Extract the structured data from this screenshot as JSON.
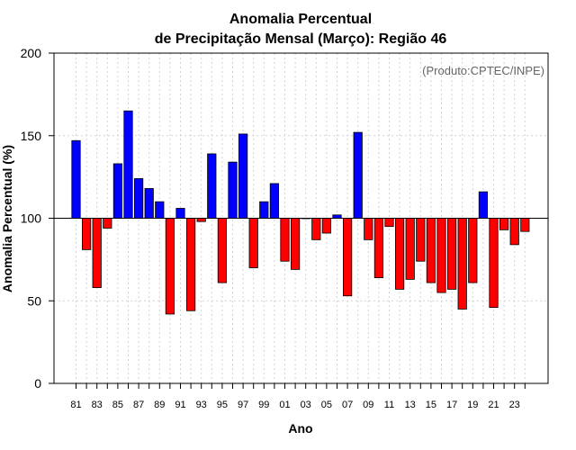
{
  "chart_data": {
    "type": "bar",
    "title_line1": "Anomalia Percentual",
    "title_line2": "de Precipitação Mensal (Março): Região 46",
    "xlabel": "Ano",
    "ylabel": "Anomalia Percentual (%)",
    "credit": "(Produto:CPTEC/INPE)",
    "baseline": 100,
    "ylim": [
      0,
      200
    ],
    "yticks": [
      0,
      50,
      100,
      150,
      200
    ],
    "ytick_labels": [
      "0",
      "50",
      "100",
      "150",
      "200"
    ],
    "xtick_labels": [
      "81",
      "83",
      "85",
      "87",
      "89",
      "91",
      "93",
      "95",
      "97",
      "99",
      "01",
      "03",
      "05",
      "07",
      "09",
      "11",
      "13",
      "15",
      "17",
      "19",
      "21",
      "23"
    ],
    "categories": [
      "1981",
      "1982",
      "1983",
      "1984",
      "1985",
      "1986",
      "1987",
      "1988",
      "1989",
      "1990",
      "1991",
      "1992",
      "1993",
      "1994",
      "1995",
      "1996",
      "1997",
      "1998",
      "1999",
      "2000",
      "2001",
      "2002",
      "2003",
      "2004",
      "2005",
      "2006",
      "2007",
      "2008",
      "2009",
      "2010",
      "2011",
      "2012",
      "2013",
      "2014",
      "2015",
      "2016",
      "2017",
      "2018",
      "2019",
      "2020",
      "2021",
      "2022",
      "2023",
      "2024"
    ],
    "values": [
      147,
      81,
      58,
      94,
      133,
      165,
      124,
      118,
      110,
      42,
      106,
      44,
      98,
      139,
      61,
      134,
      151,
      70,
      110,
      121,
      74,
      69,
      100,
      87,
      91,
      102,
      53,
      152,
      87,
      64,
      95,
      57,
      63,
      74,
      61,
      55,
      57,
      45,
      61,
      116,
      46,
      93,
      84,
      92
    ],
    "colors": {
      "above": "#0000ff",
      "below": "#ff0000",
      "outline": "#000000",
      "grid": "#d3d3d3"
    }
  }
}
